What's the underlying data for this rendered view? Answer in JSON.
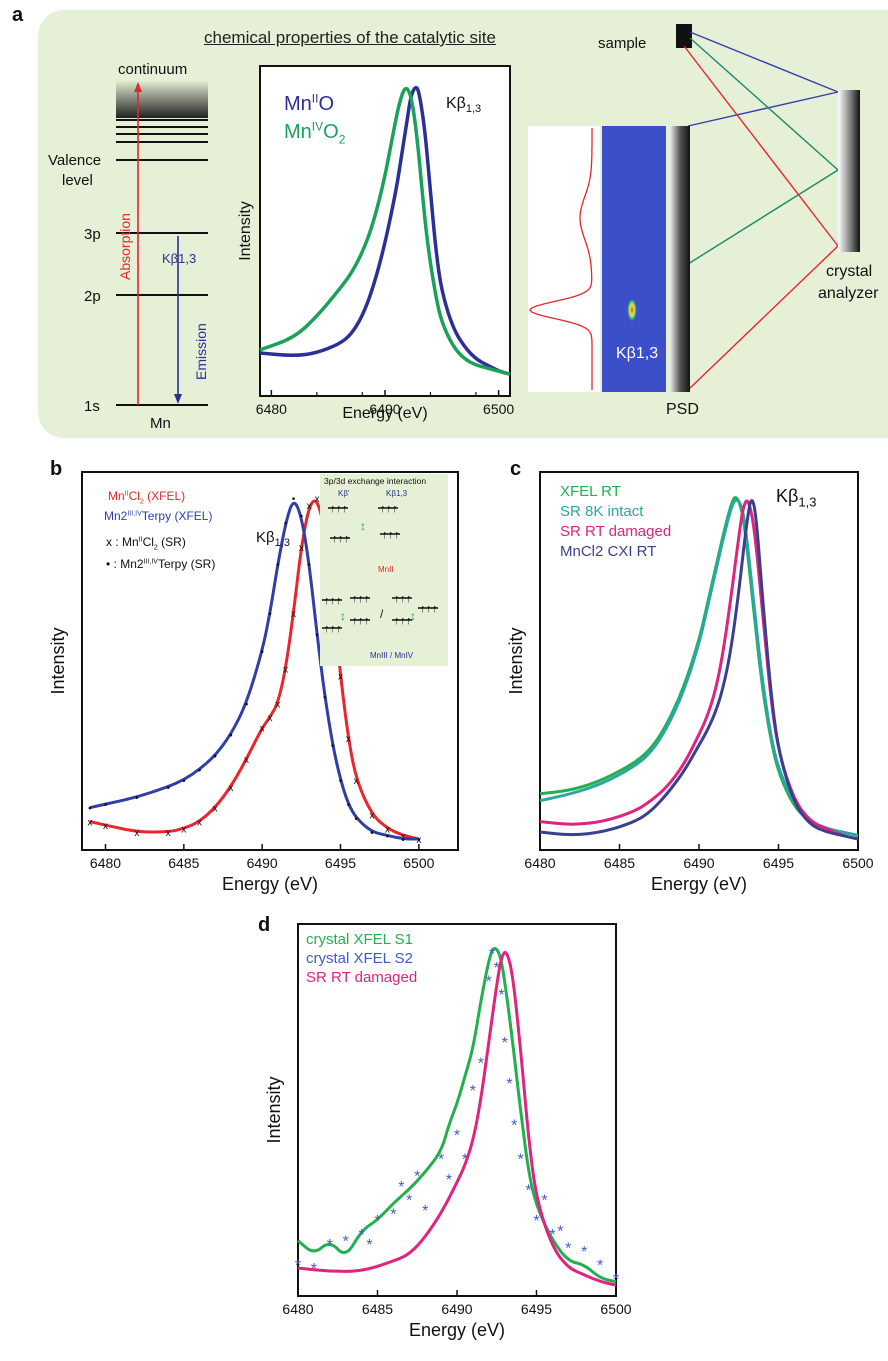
{
  "panel_a": {
    "letter": "a",
    "header": "chemical properties of the catalytic site",
    "level_labels": {
      "continuum": "continuum",
      "valence": "Valence",
      "valence2": "level",
      "p3": "3p",
      "p2": "2p",
      "s1": "1s",
      "atom": "Mn",
      "absorption": "Absorption",
      "emission": "Emission",
      "kb_label": "Kβ1,3"
    },
    "setup": {
      "sample": "sample",
      "crystal": "crystal",
      "analyzer": "analyzer",
      "psd": "PSD",
      "spot_label": "Kβ1,3"
    },
    "colors": {
      "background": "#e6f0d6",
      "absorption": "#e8262b",
      "emission": "#2b2f96",
      "detector": "#3b4fc8"
    }
  },
  "chart_data": [
    {
      "id": "a-inset",
      "type": "line",
      "xlabel": "Energy (eV)",
      "ylabel": "Intensity",
      "annotation": "Kβ1,3",
      "xlim": [
        6479,
        6501
      ],
      "xticks": [
        6480,
        6490,
        6500
      ],
      "series": [
        {
          "name": "MnIIO",
          "color": "#2b2f96",
          "x": [
            6479,
            6482,
            6484,
            6486,
            6487,
            6488,
            6489,
            6490,
            6491,
            6491.5,
            6492,
            6492.3,
            6492.7,
            6493,
            6493.5,
            6494,
            6494.5,
            6495,
            6496,
            6497,
            6498,
            6499,
            6500,
            6501
          ],
          "y": [
            0.12,
            0.11,
            0.12,
            0.15,
            0.18,
            0.24,
            0.34,
            0.48,
            0.66,
            0.78,
            0.9,
            0.97,
            1.0,
            0.98,
            0.86,
            0.65,
            0.45,
            0.32,
            0.2,
            0.14,
            0.1,
            0.08,
            0.06,
            0.05
          ]
        },
        {
          "name": "MnIVO2",
          "color": "#1aa15a",
          "x": [
            6479,
            6482,
            6484,
            6486,
            6487,
            6488,
            6489,
            6490,
            6490.8,
            6491.3,
            6491.8,
            6492.3,
            6492.8,
            6493.3,
            6493.8,
            6494.5,
            6495,
            6496,
            6497,
            6498,
            6499,
            6500,
            6501
          ],
          "y": [
            0.13,
            0.17,
            0.24,
            0.33,
            0.38,
            0.45,
            0.55,
            0.7,
            0.86,
            0.95,
            1.0,
            0.97,
            0.84,
            0.64,
            0.46,
            0.3,
            0.22,
            0.14,
            0.1,
            0.08,
            0.07,
            0.06,
            0.05
          ]
        }
      ]
    },
    {
      "id": "b",
      "type": "line",
      "xlabel": "Energy (eV)",
      "ylabel": "Intensity",
      "annotation": "Kβ1,3",
      "xlim": [
        6478.5,
        6502.5
      ],
      "xticks": [
        6480,
        6485,
        6490,
        6495,
        6500
      ],
      "series": [
        {
          "name": "MnIICl2 (XFEL)",
          "color": "#e8262b",
          "x": [
            6479,
            6480,
            6482,
            6484,
            6485,
            6486,
            6487,
            6488,
            6489,
            6490,
            6490.5,
            6491,
            6491.5,
            6492,
            6492.5,
            6493,
            6493.5,
            6494,
            6494.5,
            6495,
            6495.5,
            6496,
            6497,
            6498,
            6499,
            6500
          ],
          "y": [
            0.06,
            0.05,
            0.03,
            0.03,
            0.04,
            0.06,
            0.1,
            0.16,
            0.24,
            0.33,
            0.36,
            0.4,
            0.5,
            0.66,
            0.85,
            0.97,
            0.99,
            0.9,
            0.7,
            0.48,
            0.3,
            0.18,
            0.08,
            0.04,
            0.02,
            0.01
          ]
        },
        {
          "name": "Mn2III,IVTerpy (XFEL)",
          "color": "#2f3fa6",
          "x": [
            6479,
            6480,
            6482,
            6484,
            6485,
            6486,
            6487,
            6488,
            6489,
            6490,
            6490.5,
            6491,
            6491.5,
            6492,
            6492.5,
            6493,
            6493.5,
            6494,
            6494.5,
            6495,
            6495.5,
            6496,
            6497,
            6498,
            6499,
            6500
          ],
          "y": [
            0.1,
            0.11,
            0.13,
            0.16,
            0.18,
            0.21,
            0.25,
            0.31,
            0.4,
            0.55,
            0.66,
            0.8,
            0.92,
            0.99,
            0.94,
            0.8,
            0.6,
            0.42,
            0.28,
            0.18,
            0.11,
            0.07,
            0.03,
            0.02,
            0.01,
            0.01
          ]
        }
      ],
      "legend": [
        {
          "text": "MnIICl2 (XFEL)",
          "color": "#e8262b"
        },
        {
          "text": "Mn2III,IVTerpy (XFEL)",
          "color": "#2f3fa6"
        },
        {
          "text": "x : MnIICl2 (SR)",
          "color": "#111111"
        },
        {
          "text": "• : Mn2III,IVTerpy (SR)",
          "color": "#111111"
        }
      ],
      "inset": {
        "title": "3p/3d exchange interaction",
        "kb_prime": "Kβ'",
        "kb13": "Kβ1,3",
        "mn2": "MnII",
        "mn34": "MnIII / MnIV"
      }
    },
    {
      "id": "c",
      "type": "line",
      "xlabel": "Energy (eV)",
      "ylabel": "Intensity",
      "annotation": "Kβ1,3",
      "xlim": [
        6480,
        6500
      ],
      "xticks": [
        6480,
        6485,
        6490,
        6495,
        6500
      ],
      "series": [
        {
          "name": "XFEL RT",
          "color": "#22b04f",
          "x": [
            6480,
            6482,
            6484,
            6486,
            6487,
            6488,
            6489,
            6490,
            6490.5,
            6491,
            6491.5,
            6492,
            6492.3,
            6492.7,
            6493,
            6493.5,
            6494,
            6494.5,
            6495,
            6496,
            6497,
            6498,
            6499,
            6500
          ],
          "y": [
            0.14,
            0.15,
            0.18,
            0.23,
            0.27,
            0.34,
            0.44,
            0.58,
            0.68,
            0.78,
            0.88,
            0.97,
            1.0,
            0.96,
            0.86,
            0.64,
            0.44,
            0.3,
            0.2,
            0.1,
            0.06,
            0.04,
            0.03,
            0.02
          ]
        },
        {
          "name": "SR 8K intact",
          "color": "#2aa7a0",
          "x": [
            6480,
            6482,
            6484,
            6486,
            6487,
            6488,
            6489,
            6490,
            6490.5,
            6491,
            6491.5,
            6492,
            6492.3,
            6492.7,
            6493,
            6493.5,
            6494,
            6494.5,
            6495,
            6496,
            6497,
            6498,
            6499,
            6500
          ],
          "y": [
            0.12,
            0.14,
            0.17,
            0.22,
            0.26,
            0.33,
            0.43,
            0.57,
            0.67,
            0.77,
            0.87,
            0.96,
            0.99,
            0.97,
            0.88,
            0.66,
            0.46,
            0.31,
            0.21,
            0.11,
            0.06,
            0.04,
            0.03,
            0.02
          ]
        },
        {
          "name": "SR RT damaged",
          "color": "#e0237f",
          "x": [
            6480,
            6482,
            6484,
            6486,
            6487,
            6488,
            6489,
            6490,
            6490.5,
            6491,
            6491.5,
            6492,
            6492.5,
            6492.8,
            6493.1,
            6493.5,
            6494,
            6494.5,
            6495,
            6496,
            6497,
            6498,
            6499,
            6500
          ],
          "y": [
            0.06,
            0.05,
            0.06,
            0.09,
            0.12,
            0.16,
            0.22,
            0.31,
            0.36,
            0.43,
            0.54,
            0.7,
            0.88,
            0.97,
            0.99,
            0.9,
            0.66,
            0.42,
            0.26,
            0.12,
            0.06,
            0.04,
            0.02,
            0.01
          ]
        },
        {
          "name": "MnCl2 CXI RT",
          "color": "#3a3f8f",
          "x": [
            6480,
            6482,
            6484,
            6486,
            6487,
            6488,
            6489,
            6490,
            6490.5,
            6491,
            6491.5,
            6492,
            6492.5,
            6493,
            6493.3,
            6493.6,
            6494,
            6494.5,
            6495,
            6496,
            6497,
            6498,
            6499,
            6500
          ],
          "y": [
            0.03,
            0.02,
            0.03,
            0.06,
            0.09,
            0.14,
            0.2,
            0.28,
            0.32,
            0.37,
            0.44,
            0.55,
            0.72,
            0.92,
            1.0,
            0.94,
            0.7,
            0.44,
            0.26,
            0.11,
            0.05,
            0.03,
            0.02,
            0.01
          ]
        }
      ]
    },
    {
      "id": "d",
      "type": "line",
      "xlabel": "Energy (eV)",
      "ylabel": "Intensity",
      "xlim": [
        6480,
        6500
      ],
      "xticks": [
        6480,
        6485,
        6490,
        6495,
        6500
      ],
      "series": [
        {
          "name": "crystal XFEL S1",
          "color": "#22b04f",
          "x": [
            6480,
            6481,
            6482,
            6483,
            6484,
            6485,
            6486,
            6487,
            6488,
            6489,
            6489.5,
            6490,
            6490.5,
            6491,
            6491.5,
            6492,
            6492.3,
            6492.7,
            6493,
            6493.5,
            6494,
            6494.5,
            6495,
            6496,
            6497,
            6498,
            6499,
            6500
          ],
          "y": [
            0.14,
            0.1,
            0.14,
            0.09,
            0.17,
            0.2,
            0.25,
            0.29,
            0.34,
            0.4,
            0.48,
            0.54,
            0.62,
            0.7,
            0.84,
            0.96,
            1.0,
            0.98,
            0.9,
            0.72,
            0.52,
            0.34,
            0.24,
            0.14,
            0.08,
            0.07,
            0.03,
            0.02
          ]
        },
        {
          "name": "crystal XFEL S2",
          "color": "#3f5bc9",
          "marker": "*",
          "x": [
            6480,
            6481,
            6482,
            6483,
            6484,
            6484.5,
            6485,
            6486,
            6486.5,
            6487,
            6487.5,
            6488,
            6489,
            6489.5,
            6490,
            6490.5,
            6491,
            6491.5,
            6492,
            6492.2,
            6492.5,
            6492.8,
            6493,
            6493.3,
            6493.6,
            6494,
            6494.5,
            6495,
            6495.5,
            6496,
            6496.5,
            6497,
            6498,
            6499,
            6500
          ],
          "y": [
            0.07,
            0.06,
            0.13,
            0.14,
            0.16,
            0.13,
            0.2,
            0.22,
            0.3,
            0.26,
            0.33,
            0.23,
            0.38,
            0.32,
            0.45,
            0.38,
            0.58,
            0.66,
            0.9,
            0.98,
            0.94,
            0.86,
            0.72,
            0.6,
            0.48,
            0.38,
            0.29,
            0.2,
            0.26,
            0.16,
            0.17,
            0.12,
            0.11,
            0.07,
            0.03
          ]
        },
        {
          "name": "SR RT damaged",
          "color": "#e0237f",
          "x": [
            6480,
            6482,
            6484,
            6486,
            6487,
            6488,
            6489,
            6490,
            6490.5,
            6491,
            6491.5,
            6492,
            6492.5,
            6492.8,
            6493.1,
            6493.5,
            6494,
            6494.5,
            6495,
            6496,
            6497,
            6498,
            6499,
            6500
          ],
          "y": [
            0.06,
            0.05,
            0.05,
            0.08,
            0.1,
            0.15,
            0.22,
            0.31,
            0.36,
            0.43,
            0.55,
            0.72,
            0.89,
            0.97,
            0.99,
            0.92,
            0.7,
            0.44,
            0.26,
            0.12,
            0.06,
            0.04,
            0.02,
            0.01
          ]
        }
      ]
    }
  ]
}
